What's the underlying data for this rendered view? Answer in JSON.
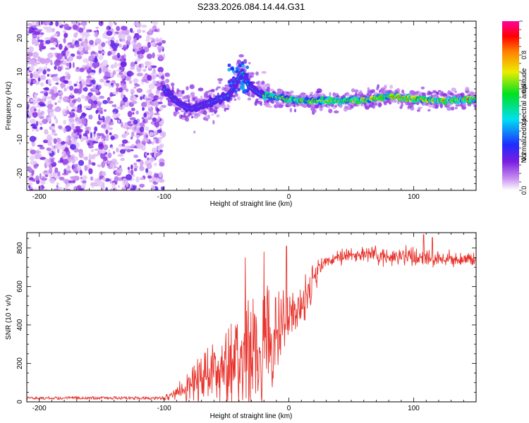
{
  "figure_title": "S233.2026.084.14.44.G31",
  "chart_data": [
    {
      "type": "heatmap",
      "name": "spectrogram",
      "xlabel": "Height of straight line (km)",
      "ylabel": "Frequency (Hz)",
      "xlim": [
        -210,
        150
      ],
      "ylim": [
        -25,
        25
      ],
      "x_ticks": [
        -200,
        -100,
        0,
        100
      ],
      "y_ticks": [
        -20,
        -10,
        0,
        10,
        20
      ],
      "colorbar": {
        "label": "Normalized spectral amplitude",
        "range": [
          0,
          1
        ],
        "ticks": [
          0.0,
          0.2,
          0.4,
          0.6,
          0.8
        ],
        "colormap": "rainbow (white-purple-blue-cyan-green-yellow-red-magenta)"
      },
      "regions": [
        {
          "x_range": [
            -210,
            -100
          ],
          "description": "noise: scattered low-amplitude purple blobs across full frequency range"
        },
        {
          "x_range": [
            -100,
            -20
          ],
          "description": "emerging signal near 0 Hz with spread up to ~13 Hz at x≈-37"
        },
        {
          "x_range": [
            -20,
            150
          ],
          "description": "strong coherent line at ~1-2 Hz, red/green amplitude"
        }
      ],
      "ridge": {
        "x": [
          -100,
          -92,
          -85,
          -78,
          -70,
          -62,
          -55,
          -48,
          -42,
          -37,
          -32,
          -25,
          -20,
          -10,
          0,
          10,
          20,
          40,
          60,
          80,
          100,
          120,
          150
        ],
        "freq_hz": [
          5,
          2,
          0,
          -1,
          0,
          1,
          2,
          3,
          7,
          10,
          6,
          4,
          3,
          2.5,
          2,
          1.5,
          1.5,
          1.5,
          1.7,
          2.8,
          2,
          1.5,
          2
        ]
      }
    },
    {
      "type": "line",
      "name": "snr",
      "xlabel": "Height of straight line (km)",
      "ylabel": "SNR (10 * v/v)",
      "xlim": [
        -210,
        150
      ],
      "ylim": [
        0,
        880
      ],
      "x_ticks": [
        -200,
        -100,
        0,
        100
      ],
      "y_ticks": [
        0,
        200,
        400,
        600,
        800
      ],
      "color": "#e8322b",
      "envelope": {
        "x": [
          -210,
          -100,
          -95,
          -85,
          -75,
          -65,
          -55,
          -45,
          -35,
          -25,
          -20,
          -15,
          -10,
          -5,
          0,
          5,
          10,
          15,
          20,
          25,
          30,
          40,
          50,
          60,
          80,
          100,
          120,
          150
        ],
        "mean": [
          20,
          20,
          30,
          60,
          110,
          140,
          170,
          200,
          240,
          280,
          300,
          330,
          370,
          410,
          440,
          470,
          490,
          580,
          650,
          700,
          730,
          750,
          760,
          765,
          760,
          755,
          745,
          740
        ],
        "noise": [
          8,
          8,
          15,
          40,
          70,
          90,
          110,
          150,
          180,
          200,
          200,
          180,
          150,
          110,
          80,
          60,
          90,
          80,
          60,
          40,
          35,
          30,
          30,
          30,
          35,
          40,
          30,
          25
        ]
      },
      "notable_peaks": [
        {
          "x": -35,
          "y": 750
        },
        {
          "x": -20,
          "y": 780
        },
        {
          "x": -2,
          "y": 810
        },
        {
          "x": 108,
          "y": 870
        },
        {
          "x": 115,
          "y": 855
        }
      ]
    }
  ]
}
